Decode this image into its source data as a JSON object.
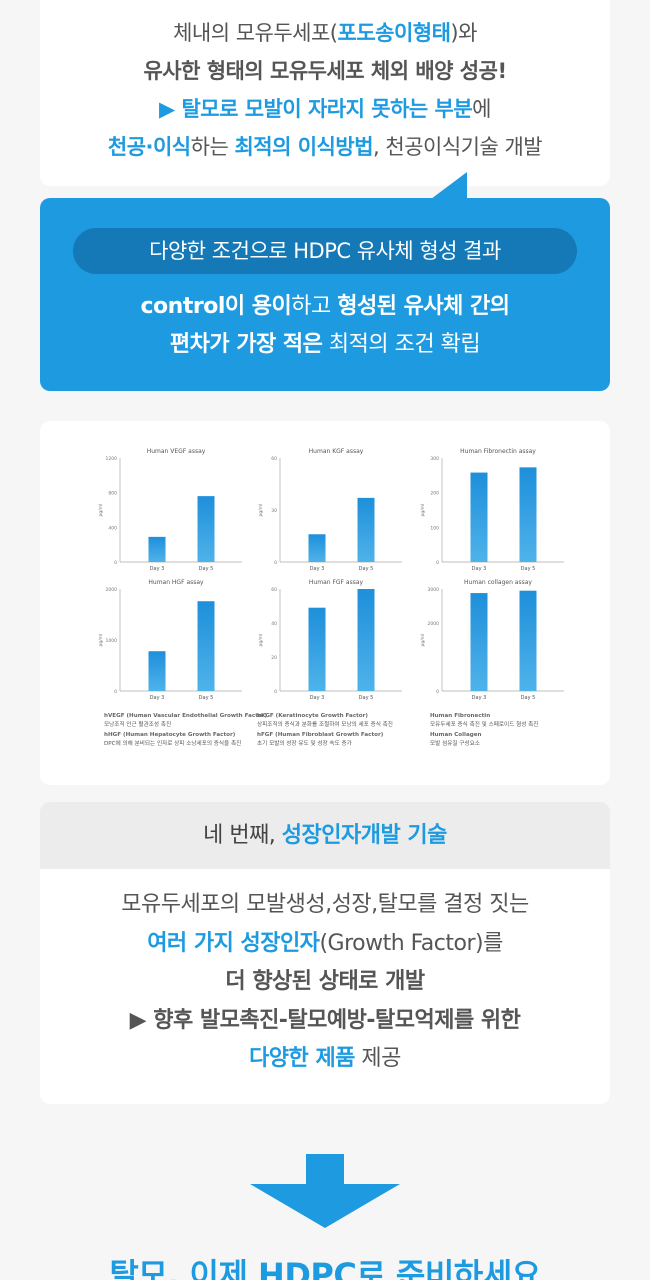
{
  "intro": {
    "line1_a": "체내의 모유두세포(",
    "line1_hl": "포도송이형태",
    "line1_b": ")와",
    "line2": "유사한 형태의 모유두세포 체외 배양 성공!",
    "line3_hl": "▶ 탈모로 모발이 자라지 못하는 부분",
    "line3_b": "에",
    "line4_hl1": "천공·이식",
    "line4_a": "하는 ",
    "line4_hl2": "최적의 이식방법",
    "line4_b": ", 천공이식기술 개발"
  },
  "result_box": {
    "pill": "다양한 조건으로 HDPC 유사체 형성 결과",
    "line1_b1": "control이 용이",
    "line1_a": "하고 ",
    "line1_b2": "형성된 유사체 간의",
    "line2_b": "편차가 가장 적은",
    "line2_a": " 최적의 조건 확립",
    "bg_color": "#1e9be0"
  },
  "charts_captions": {
    "col1_line1": "hVEGF (Human Vascular Endothelial Growth Factor)",
    "col1_line2": "모낭조직 인근 혈관조성 촉진",
    "col1_line3": "hHGF (Human Hepatocyte Growth Factor)",
    "col1_line4": "DPC에 의해 분비되는 인자로 상피 소낭세포의 증식을 촉진",
    "col2_line1": "hKGF (Keratinocyte Growth Factor)",
    "col2_line2": "상피조직의 증식과 분화를 조절하여 모낭의 세포 증식 촉진",
    "col2_line3": "hFGF (Human Fibroblast Growth Factor)",
    "col2_line4": "초기 모발의 성장 유도 및 성장 속도 증가",
    "col3_line1": "Human Fibronectin",
    "col3_line2": "모유두세포 증식 촉진 및 스페로이드 형성 촉진",
    "col3_line3": "Human Collagen",
    "col3_line4": "모발 섬유질 구성요소"
  },
  "chart_data": [
    {
      "type": "bar",
      "title": "Human VEGF assay",
      "ylabel": "pg/ml",
      "categories": [
        "Day 3",
        "Day 5"
      ],
      "values": [
        290,
        760
      ],
      "ylim": [
        0,
        1200
      ],
      "yticks": [
        "1200",
        "800",
        "400",
        "0"
      ]
    },
    {
      "type": "bar",
      "title": "Human KGF assay",
      "ylabel": "pg/ml",
      "categories": [
        "Day 3",
        "Day 5"
      ],
      "values": [
        16,
        37
      ],
      "ylim": [
        0,
        60
      ],
      "yticks": [
        "60",
        "30",
        "0"
      ]
    },
    {
      "type": "bar",
      "title": "Human Fibronectin assay",
      "ylabel": "pg/ml",
      "categories": [
        "Day 3",
        "Day 5"
      ],
      "values": [
        258,
        273
      ],
      "ylim": [
        0,
        300
      ],
      "yticks": [
        "300",
        "200",
        "100",
        "0"
      ]
    },
    {
      "type": "bar",
      "title": "Human HGF assay",
      "ylabel": "pg/ml",
      "categories": [
        "Day 3",
        "Day 5"
      ],
      "values": [
        780,
        1760
      ],
      "ylim": [
        0,
        2000
      ],
      "yticks": [
        "2000",
        "1000",
        "0"
      ]
    },
    {
      "type": "bar",
      "title": "Human FGF assay",
      "ylabel": "pg/ml",
      "categories": [
        "Day 3",
        "Day 5"
      ],
      "values": [
        49,
        60
      ],
      "ylim": [
        0,
        60
      ],
      "yticks": [
        "60",
        "40",
        "20",
        "0"
      ]
    },
    {
      "type": "bar",
      "title": "Human collagen assay",
      "ylabel": "pg/ml",
      "categories": [
        "Day 3",
        "Day 5"
      ],
      "values": [
        2880,
        2950
      ],
      "ylim": [
        0,
        3000
      ],
      "yticks": [
        "3000",
        "2000",
        "0"
      ]
    }
  ],
  "factor": {
    "head_a": "네 번째, ",
    "head_hl": "성장인자개발 기술",
    "line1": "모유두세포의 모발생성,성장,탈모를 결정 짓는",
    "line2_hl": "여러 가지 성장인자",
    "line2_a": "(Growth Factor)를",
    "line3_hl": "더 향상된 상태로 개발",
    "line4_hl": "▶  향후 발모촉진-탈모예방-탈모억제를 위한",
    "line5_hl": "다양한 제품",
    "line5_a": " 제공"
  },
  "final_heading": "탈모, 이제 HDPC로 준비하세요",
  "colors": {
    "accent": "#1e9be0",
    "accent_dark": "#1479b6"
  }
}
